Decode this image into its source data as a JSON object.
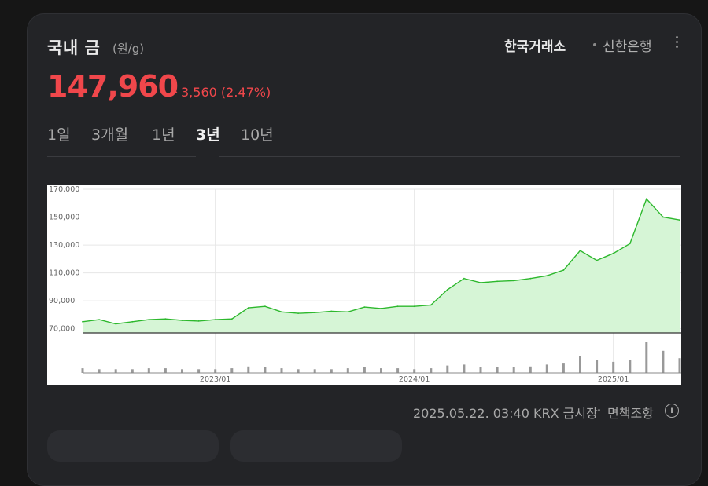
{
  "header": {
    "title": "국내 금",
    "unit": "(원/g)",
    "sources": [
      "한국거래소",
      "신한은행"
    ]
  },
  "price": {
    "value": "147,960",
    "change": "3,560 (2.47%)",
    "direction": "up",
    "color": "#f0474b"
  },
  "tabs": [
    "1일",
    "3개월",
    "1년",
    "3년",
    "10년"
  ],
  "active_tab": "3년",
  "footer": {
    "timestamp": "2025.05.22. 03:40 KRX 금시장",
    "disclaimer": "면책조항"
  },
  "chart_data": {
    "type": "area",
    "line_color": "#2db82d",
    "fill_color": "#d6f5d6",
    "ylim": [
      67000,
      170000
    ],
    "y_ticks": [
      70000,
      90000,
      110000,
      130000,
      150000,
      170000
    ],
    "y_tick_labels": [
      "70,000",
      "90,000",
      "110,000",
      "130,000",
      "150,000",
      "170,000"
    ],
    "x_tick_labels": [
      "2023/01",
      "2024/01",
      "2025/01"
    ],
    "x": [
      "2022-05",
      "2022-06",
      "2022-07",
      "2022-08",
      "2022-09",
      "2022-10",
      "2022-11",
      "2022-12",
      "2023-01",
      "2023-02",
      "2023-03",
      "2023-04",
      "2023-05",
      "2023-06",
      "2023-07",
      "2023-08",
      "2023-09",
      "2023-10",
      "2023-11",
      "2023-12",
      "2024-01",
      "2024-02",
      "2024-03",
      "2024-04",
      "2024-05",
      "2024-06",
      "2024-07",
      "2024-08",
      "2024-09",
      "2024-10",
      "2024-11",
      "2024-12",
      "2025-01",
      "2025-02",
      "2025-03",
      "2025-04",
      "2025-05"
    ],
    "y": [
      75000,
      76500,
      73500,
      75000,
      76500,
      77000,
      76000,
      75500,
      76500,
      77000,
      85000,
      86000,
      82000,
      81000,
      81500,
      82500,
      82000,
      85500,
      84500,
      86000,
      86000,
      87000,
      98000,
      106000,
      103000,
      104000,
      104500,
      106000,
      108000,
      112000,
      126000,
      119000,
      124000,
      131000,
      163000,
      150000,
      147960
    ],
    "volume": [
      5,
      4,
      4,
      4,
      5,
      5,
      4,
      4,
      4,
      5,
      7,
      6,
      5,
      4,
      4,
      4,
      5,
      6,
      5,
      5,
      4,
      5,
      8,
      9,
      6,
      6,
      6,
      7,
      9,
      11,
      18,
      14,
      12,
      14,
      34,
      24,
      16
    ]
  }
}
